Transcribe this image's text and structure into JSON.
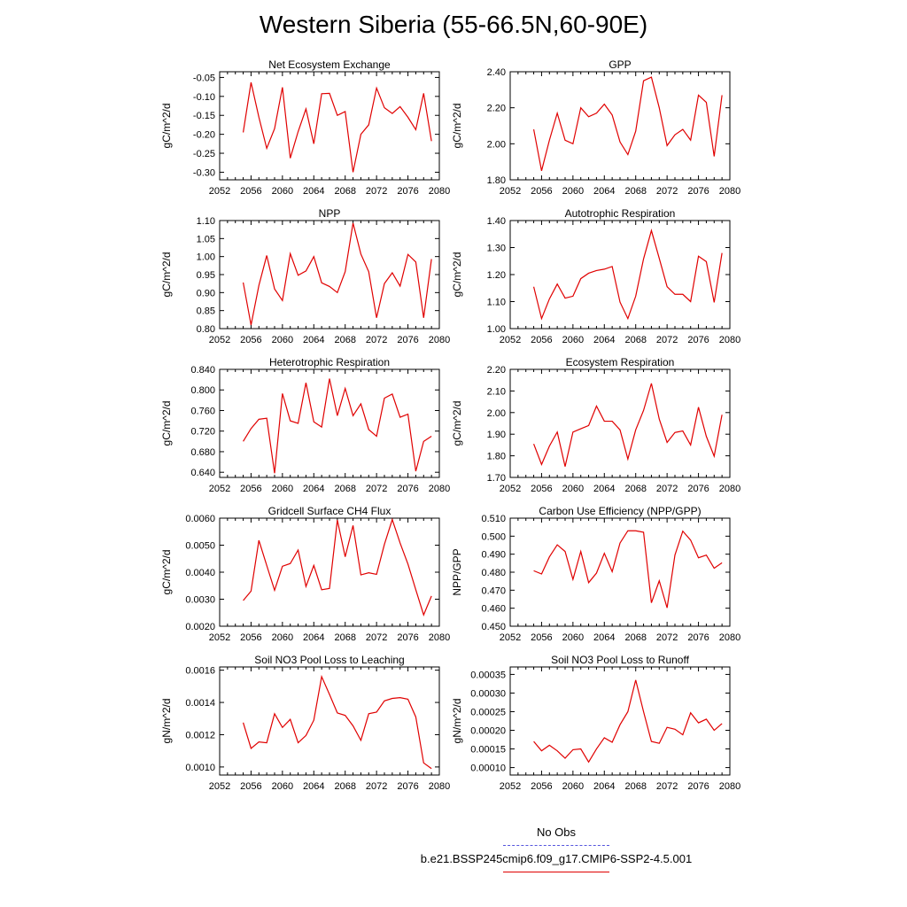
{
  "page_title": "Western Siberia (55-66.5N,60-90E)",
  "legend": {
    "obs_label": "No Obs",
    "obs_color": "#5555dd",
    "run_label": "b.e21.BSSP245cmip6.f09_g17.CMIP6-SSP2-4.5.001",
    "run_color": "#e00000"
  },
  "chart_data": [
    {
      "type": "line",
      "title": "Net Ecosystem Exchange",
      "ylabel": "gC/m^2/d",
      "xlim": [
        2052,
        2080
      ],
      "ylim": [
        -0.32,
        -0.035
      ],
      "xticks": [
        2052,
        2056,
        2060,
        2064,
        2068,
        2072,
        2076,
        2080
      ],
      "yticks": [
        "-0.30",
        "-0.25",
        "-0.20",
        "-0.15",
        "-0.10",
        "-0.05"
      ],
      "x": [
        2055,
        2056,
        2057,
        2058,
        2059,
        2060,
        2061,
        2062,
        2063,
        2064,
        2065,
        2066,
        2067,
        2068,
        2069,
        2070,
        2071,
        2072,
        2073,
        2074,
        2075,
        2076,
        2077,
        2078,
        2079
      ],
      "series": [
        {
          "values": [
            -0.195,
            -0.063,
            -0.155,
            -0.237,
            -0.185,
            -0.076,
            -0.263,
            -0.193,
            -0.133,
            -0.225,
            -0.093,
            -0.092,
            -0.15,
            -0.14,
            -0.3,
            -0.2,
            -0.175,
            -0.078,
            -0.13,
            -0.145,
            -0.127,
            -0.155,
            -0.188,
            -0.092,
            -0.218
          ]
        }
      ]
    },
    {
      "type": "line",
      "title": "GPP",
      "ylabel": "gC/m^2/d",
      "xlim": [
        2052,
        2080
      ],
      "ylim": [
        1.8,
        2.4
      ],
      "xticks": [
        2052,
        2056,
        2060,
        2064,
        2068,
        2072,
        2076,
        2080
      ],
      "yticks": [
        "1.80",
        "2.00",
        "2.20",
        "2.40"
      ],
      "x": [
        2055,
        2056,
        2057,
        2058,
        2059,
        2060,
        2061,
        2062,
        2063,
        2064,
        2065,
        2066,
        2067,
        2068,
        2069,
        2070,
        2071,
        2072,
        2073,
        2074,
        2075,
        2076,
        2077,
        2078,
        2079
      ],
      "series": [
        {
          "values": [
            2.08,
            1.85,
            2.02,
            2.17,
            2.02,
            2.0,
            2.2,
            2.15,
            2.17,
            2.22,
            2.16,
            2.01,
            1.94,
            2.07,
            2.35,
            2.37,
            2.2,
            1.99,
            2.05,
            2.08,
            2.02,
            2.27,
            2.23,
            1.93,
            2.27
          ]
        }
      ]
    },
    {
      "type": "line",
      "title": "NPP",
      "ylabel": "gC/m^2/d",
      "xlim": [
        2052,
        2080
      ],
      "ylim": [
        0.8,
        1.1
      ],
      "xticks": [
        2052,
        2056,
        2060,
        2064,
        2068,
        2072,
        2076,
        2080
      ],
      "yticks": [
        "0.80",
        "0.85",
        "0.90",
        "0.95",
        "1.00",
        "1.05",
        "1.10"
      ],
      "x": [
        2055,
        2056,
        2057,
        2058,
        2059,
        2060,
        2061,
        2062,
        2063,
        2064,
        2065,
        2066,
        2067,
        2068,
        2069,
        2070,
        2071,
        2072,
        2073,
        2074,
        2075,
        2076,
        2077,
        2078,
        2079
      ],
      "series": [
        {
          "values": [
            0.928,
            0.81,
            0.92,
            1.003,
            0.91,
            0.878,
            1.008,
            0.948,
            0.96,
            1.0,
            0.927,
            0.917,
            0.9,
            0.958,
            1.093,
            1.007,
            0.958,
            0.83,
            0.925,
            0.955,
            0.918,
            1.006,
            0.985,
            0.83,
            0.993
          ]
        }
      ]
    },
    {
      "type": "line",
      "title": "Autotrophic Respiration",
      "ylabel": "gC/m^2/d",
      "xlim": [
        2052,
        2080
      ],
      "ylim": [
        1.0,
        1.4
      ],
      "xticks": [
        2052,
        2056,
        2060,
        2064,
        2068,
        2072,
        2076,
        2080
      ],
      "yticks": [
        "1.00",
        "1.10",
        "1.20",
        "1.30",
        "1.40"
      ],
      "x": [
        2055,
        2056,
        2057,
        2058,
        2059,
        2060,
        2061,
        2062,
        2063,
        2064,
        2065,
        2066,
        2067,
        2068,
        2069,
        2070,
        2071,
        2072,
        2073,
        2074,
        2075,
        2076,
        2077,
        2078,
        2079
      ],
      "series": [
        {
          "values": [
            1.155,
            1.037,
            1.11,
            1.165,
            1.113,
            1.12,
            1.185,
            1.205,
            1.215,
            1.22,
            1.23,
            1.098,
            1.037,
            1.12,
            1.258,
            1.363,
            1.26,
            1.155,
            1.127,
            1.127,
            1.1,
            1.268,
            1.248,
            1.097,
            1.28
          ]
        }
      ]
    },
    {
      "type": "line",
      "title": "Heterotrophic Respiration",
      "ylabel": "gC/m^2/d",
      "xlim": [
        2052,
        2080
      ],
      "ylim": [
        0.63,
        0.84
      ],
      "xticks": [
        2052,
        2056,
        2060,
        2064,
        2068,
        2072,
        2076,
        2080
      ],
      "yticks": [
        "0.640",
        "0.680",
        "0.720",
        "0.760",
        "0.800",
        "0.840"
      ],
      "x": [
        2055,
        2056,
        2057,
        2058,
        2059,
        2060,
        2061,
        2062,
        2063,
        2064,
        2065,
        2066,
        2067,
        2068,
        2069,
        2070,
        2071,
        2072,
        2073,
        2074,
        2075,
        2076,
        2077,
        2078,
        2079
      ],
      "series": [
        {
          "values": [
            0.7,
            0.725,
            0.743,
            0.745,
            0.638,
            0.793,
            0.74,
            0.735,
            0.814,
            0.738,
            0.728,
            0.822,
            0.75,
            0.803,
            0.75,
            0.773,
            0.723,
            0.71,
            0.784,
            0.792,
            0.747,
            0.753,
            0.642,
            0.7,
            0.71
          ]
        }
      ]
    },
    {
      "type": "line",
      "title": "Ecosystem Respiration",
      "ylabel": "gC/m^2/d",
      "xlim": [
        2052,
        2080
      ],
      "ylim": [
        1.7,
        2.2
      ],
      "xticks": [
        2052,
        2056,
        2060,
        2064,
        2068,
        2072,
        2076,
        2080
      ],
      "yticks": [
        "1.70",
        "1.80",
        "1.90",
        "2.00",
        "2.10",
        "2.20"
      ],
      "x": [
        2055,
        2056,
        2057,
        2058,
        2059,
        2060,
        2061,
        2062,
        2063,
        2064,
        2065,
        2066,
        2067,
        2068,
        2069,
        2070,
        2071,
        2072,
        2073,
        2074,
        2075,
        2076,
        2077,
        2078,
        2079
      ],
      "series": [
        {
          "values": [
            1.855,
            1.76,
            1.845,
            1.91,
            1.75,
            1.91,
            1.925,
            1.94,
            2.03,
            1.96,
            1.96,
            1.92,
            1.785,
            1.92,
            2.01,
            2.135,
            1.97,
            1.862,
            1.908,
            1.915,
            1.85,
            2.025,
            1.89,
            1.798,
            1.99
          ]
        }
      ]
    },
    {
      "type": "line",
      "title": "Gridcell Surface CH4 Flux",
      "ylabel": "gC/m^2/d",
      "xlim": [
        2052,
        2080
      ],
      "ylim": [
        0.002,
        0.006
      ],
      "xticks": [
        2052,
        2056,
        2060,
        2064,
        2068,
        2072,
        2076,
        2080
      ],
      "yticks": [
        "0.0020",
        "0.0030",
        "0.0040",
        "0.0050",
        "0.0060"
      ],
      "x": [
        2055,
        2056,
        2057,
        2058,
        2059,
        2060,
        2061,
        2062,
        2063,
        2064,
        2065,
        2066,
        2067,
        2068,
        2069,
        2070,
        2071,
        2072,
        2073,
        2074,
        2075,
        2076,
        2077,
        2078,
        2079
      ],
      "series": [
        {
          "values": [
            0.00295,
            0.0033,
            0.00518,
            0.00425,
            0.00333,
            0.00422,
            0.00432,
            0.00482,
            0.00347,
            0.00425,
            0.00335,
            0.0034,
            0.00593,
            0.00457,
            0.00573,
            0.0039,
            0.00398,
            0.00392,
            0.00503,
            0.00595,
            0.00508,
            0.0043,
            0.00335,
            0.00242,
            0.00312
          ]
        }
      ]
    },
    {
      "type": "line",
      "title": "Carbon Use Efficiency (NPP/GPP)",
      "ylabel": "NPP/GPP",
      "xlim": [
        2052,
        2080
      ],
      "ylim": [
        0.45,
        0.51
      ],
      "xticks": [
        2052,
        2056,
        2060,
        2064,
        2068,
        2072,
        2076,
        2080
      ],
      "yticks": [
        "0.450",
        "0.460",
        "0.470",
        "0.480",
        "0.490",
        "0.500",
        "0.510"
      ],
      "x": [
        2055,
        2056,
        2057,
        2058,
        2059,
        2060,
        2061,
        2062,
        2063,
        2064,
        2065,
        2066,
        2067,
        2068,
        2069,
        2070,
        2071,
        2072,
        2073,
        2074,
        2075,
        2076,
        2077,
        2078,
        2079
      ],
      "series": [
        {
          "values": [
            0.4808,
            0.479,
            0.4885,
            0.4952,
            0.4915,
            0.476,
            0.4915,
            0.4742,
            0.4795,
            0.4905,
            0.4803,
            0.4962,
            0.503,
            0.503,
            0.5022,
            0.463,
            0.4752,
            0.4602,
            0.4895,
            0.5028,
            0.4978,
            0.488,
            0.4895,
            0.4822,
            0.4852
          ]
        }
      ]
    },
    {
      "type": "line",
      "title": "Soil NO3 Pool Loss to Leaching",
      "ylabel": "gN/m^2/d",
      "xlim": [
        2052,
        2080
      ],
      "ylim": [
        0.00095,
        0.00162
      ],
      "xticks": [
        2052,
        2056,
        2060,
        2064,
        2068,
        2072,
        2076,
        2080
      ],
      "yticks": [
        "0.0010",
        "0.0012",
        "0.0014",
        "0.0016"
      ],
      "x": [
        2055,
        2056,
        2057,
        2058,
        2059,
        2060,
        2061,
        2062,
        2063,
        2064,
        2065,
        2066,
        2067,
        2068,
        2069,
        2070,
        2071,
        2072,
        2073,
        2074,
        2075,
        2076,
        2077,
        2078,
        2079
      ],
      "series": [
        {
          "values": [
            0.001275,
            0.001115,
            0.001155,
            0.00115,
            0.00133,
            0.001245,
            0.001295,
            0.00115,
            0.001195,
            0.00129,
            0.00156,
            0.00145,
            0.001335,
            0.00132,
            0.001255,
            0.001165,
            0.00133,
            0.00134,
            0.00141,
            0.001425,
            0.00143,
            0.00142,
            0.00131,
            0.001025,
            0.00099
          ]
        }
      ]
    },
    {
      "type": "line",
      "title": "Soil NO3 Pool Loss to Runoff",
      "ylabel": "gN/m^2/d",
      "xlim": [
        2052,
        2080
      ],
      "ylim": [
        8e-05,
        0.00037
      ],
      "xticks": [
        2052,
        2056,
        2060,
        2064,
        2068,
        2072,
        2076,
        2080
      ],
      "yticks": [
        "0.00010",
        "0.00015",
        "0.00020",
        "0.00025",
        "0.00030",
        "0.00035"
      ],
      "x": [
        2055,
        2056,
        2057,
        2058,
        2059,
        2060,
        2061,
        2062,
        2063,
        2064,
        2065,
        2066,
        2067,
        2068,
        2069,
        2070,
        2071,
        2072,
        2073,
        2074,
        2075,
        2076,
        2077,
        2078,
        2079
      ],
      "series": [
        {
          "values": [
            0.00017,
            0.000145,
            0.00016,
            0.000145,
            0.000125,
            0.000148,
            0.00015,
            0.000115,
            0.00015,
            0.00018,
            0.000168,
            0.000215,
            0.00025,
            0.000335,
            0.00025,
            0.00017,
            0.000165,
            0.000208,
            0.000203,
            0.000188,
            0.000247,
            0.00022,
            0.00023,
            0.0002,
            0.000218
          ]
        }
      ]
    }
  ]
}
